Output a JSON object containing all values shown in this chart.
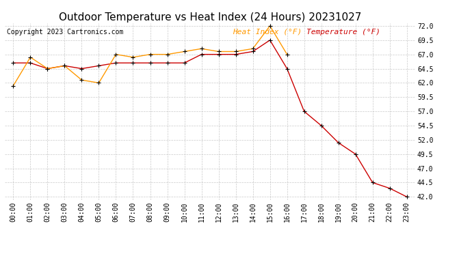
{
  "title": "Outdoor Temperature vs Heat Index (24 Hours) 20231027",
  "copyright": "Copyright 2023 Cartronics.com",
  "legend_heat": "Heat Index (°F)",
  "legend_temp": "Temperature (°F)",
  "hours": [
    0,
    1,
    2,
    3,
    4,
    5,
    6,
    7,
    8,
    9,
    10,
    11,
    12,
    13,
    14,
    15,
    16,
    17,
    18,
    19,
    20,
    21,
    22,
    23
  ],
  "temperature": [
    65.5,
    65.5,
    64.5,
    65.0,
    64.5,
    65.0,
    65.5,
    65.5,
    65.5,
    65.5,
    65.5,
    67.0,
    67.0,
    67.0,
    67.5,
    69.5,
    64.5,
    57.0,
    54.5,
    51.5,
    49.5,
    44.5,
    43.5,
    42.0
  ],
  "heat_index": [
    61.5,
    66.5,
    64.5,
    65.0,
    62.5,
    62.0,
    67.0,
    66.5,
    67.0,
    67.0,
    67.5,
    68.0,
    67.5,
    67.5,
    68.0,
    72.0,
    67.0
  ],
  "heat_hours": [
    0,
    1,
    2,
    3,
    4,
    5,
    6,
    7,
    8,
    9,
    10,
    11,
    12,
    13,
    14,
    15,
    16
  ],
  "ylim_min": 41.5,
  "ylim_max": 72.5,
  "yticks": [
    42.0,
    44.5,
    47.0,
    49.5,
    52.0,
    54.5,
    57.0,
    59.5,
    62.0,
    64.5,
    67.0,
    69.5,
    72.0
  ],
  "temp_color": "#cc0000",
  "heat_color": "#ff9900",
  "marker_color": "#000000",
  "bg_color": "#ffffff",
  "grid_color": "#bbbbbb",
  "title_fontsize": 11,
  "tick_fontsize": 7,
  "copyright_fontsize": 7,
  "legend_fontsize": 8
}
